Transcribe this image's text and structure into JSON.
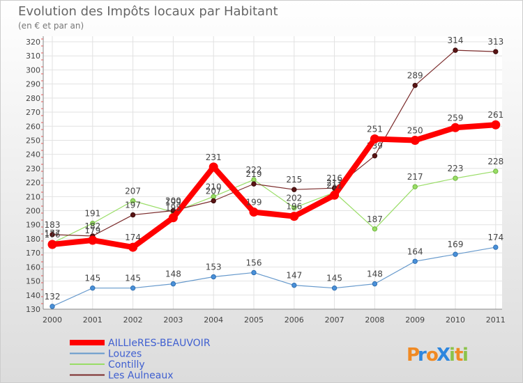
{
  "chart_data": {
    "type": "line",
    "title": "Evolution des Impôts locaux par Habitant",
    "subtitle": "(en € et par an)",
    "x": [
      "2000",
      "2001",
      "2002",
      "2003",
      "2004",
      "2005",
      "2006",
      "2007",
      "2008",
      "2009",
      "2010",
      "2011"
    ],
    "ylim": [
      130,
      320
    ],
    "yticks": [
      130,
      140,
      150,
      160,
      170,
      180,
      190,
      200,
      210,
      220,
      230,
      240,
      250,
      260,
      270,
      280,
      290,
      300,
      310,
      320
    ],
    "grid": true,
    "legend_position": "bottom-left",
    "series": [
      {
        "name": "AILLIeRES-BEAUVOIR",
        "color": "#ff0000",
        "values": [
          176,
          179,
          174,
          195,
          231,
          199,
          196,
          211,
          251,
          250,
          259,
          261
        ],
        "labels": [
          "176",
          "179",
          "174",
          "195",
          "231",
          "199",
          "196",
          "211",
          "251",
          "250",
          "259",
          "261"
        ]
      },
      {
        "name": "Louzes",
        "color": "#6699cc",
        "values": [
          132,
          145,
          145,
          148,
          153,
          156,
          147,
          145,
          148,
          164,
          169,
          174
        ],
        "labels": [
          "132",
          "145",
          "145",
          "148",
          "153",
          "156",
          "147",
          "145",
          "148",
          "164",
          "169",
          "174"
        ]
      },
      {
        "name": "Contilly",
        "color": "#99dd66",
        "values": [
          177,
          191,
          207,
          199,
          210,
          222,
          202,
          213,
          187,
          217,
          223,
          228
        ],
        "labels": [
          "177",
          "191",
          "207",
          "199",
          "210",
          "222",
          "202",
          "213",
          "187",
          "217",
          "223",
          "228"
        ]
      },
      {
        "name": "Les Aulneaux",
        "color": "#6b1f1f",
        "values": [
          183,
          182,
          197,
          200,
          207,
          219,
          215,
          216,
          239,
          289,
          314,
          313
        ],
        "labels": [
          "183",
          "182",
          "197",
          "200",
          "207",
          "219",
          "215",
          "216",
          "239",
          "289",
          "314",
          "313"
        ]
      }
    ]
  },
  "brand": {
    "text": "ProXiti",
    "letters": [
      "P",
      "r",
      "o",
      "X",
      "i",
      "t",
      "i"
    ],
    "colors": [
      "#f08a24",
      "#2e86de",
      "#f08a24",
      "#2e86de",
      "#8bc34a",
      "#f08a24",
      "#8bc34a"
    ]
  }
}
